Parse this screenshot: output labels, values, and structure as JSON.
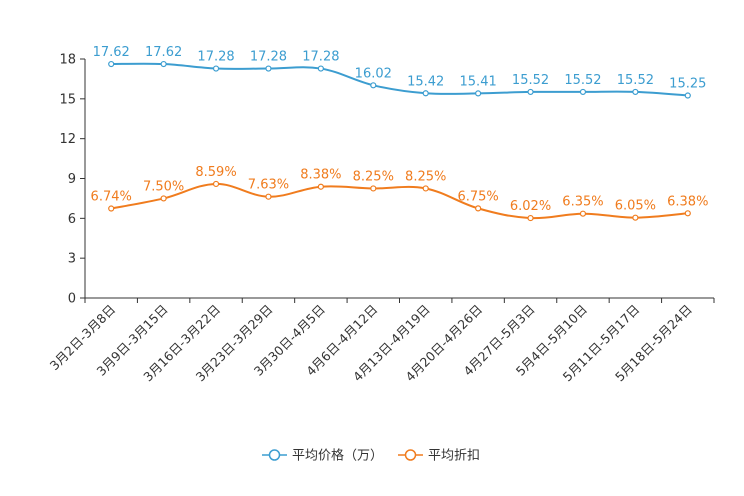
{
  "chart_data": {
    "type": "line",
    "categories": [
      "3月2日-3月8日",
      "3月9日-3月15日",
      "3月16日-3月22日",
      "3月23日-3月29日",
      "3月30日-4月5日",
      "4月6日-4月12日",
      "4月13日-4月19日",
      "4月20日-4月26日",
      "4月27日-5月3日",
      "5月4日-5月10日",
      "5月11日-5月17日",
      "5月18日-5月24日"
    ],
    "series": [
      {
        "name": "平均价格（万）",
        "color": "#3c9dd0",
        "values": [
          17.62,
          17.62,
          17.28,
          17.28,
          17.28,
          16.02,
          15.42,
          15.41,
          15.52,
          15.52,
          15.52,
          15.25
        ],
        "labels": [
          "17.62",
          "17.62",
          "17.28",
          "17.28",
          "17.28",
          "16.02",
          "15.42",
          "15.41",
          "15.52",
          "15.52",
          "15.52",
          "15.25"
        ]
      },
      {
        "name": "平均折扣",
        "color": "#f07c1e",
        "values": [
          6.74,
          7.5,
          8.59,
          7.63,
          8.38,
          8.25,
          8.25,
          6.75,
          6.02,
          6.35,
          6.05,
          6.38
        ],
        "labels": [
          "6.74%",
          "7.50%",
          "8.59%",
          "7.63%",
          "8.38%",
          "8.25%",
          "8.25%",
          "6.75%",
          "6.02%",
          "6.35%",
          "6.05%",
          "6.38%"
        ]
      }
    ],
    "y_ticks": [
      "0",
      "3",
      "6",
      "9",
      "12",
      "15",
      "18"
    ],
    "ylim": [
      0,
      18
    ],
    "title": "",
    "xlabel": "",
    "ylabel": "",
    "grid": false,
    "legend_position": "bottom-center"
  }
}
